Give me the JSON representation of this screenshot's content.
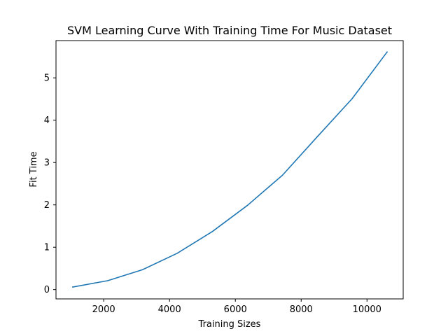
{
  "chart_data": {
    "type": "line",
    "title": "SVM Learning Curve With Training Time For Music Dataset",
    "xlabel": "Training Sizes",
    "ylabel": "Fit Time",
    "xlim": [
      550,
      11100
    ],
    "ylim": [
      -0.22,
      5.88
    ],
    "xticks": [
      2000,
      4000,
      6000,
      8000,
      10000
    ],
    "yticks": [
      0,
      1,
      2,
      3,
      4,
      5
    ],
    "grid": false,
    "series": [
      {
        "color": "#1f77b4",
        "x": [
          1060,
          2120,
          3180,
          4240,
          5300,
          6370,
          7430,
          8490,
          9550,
          10610
        ],
        "y": [
          0.06,
          0.21,
          0.47,
          0.86,
          1.37,
          1.99,
          2.7,
          3.61,
          4.51,
          5.61
        ]
      }
    ]
  }
}
